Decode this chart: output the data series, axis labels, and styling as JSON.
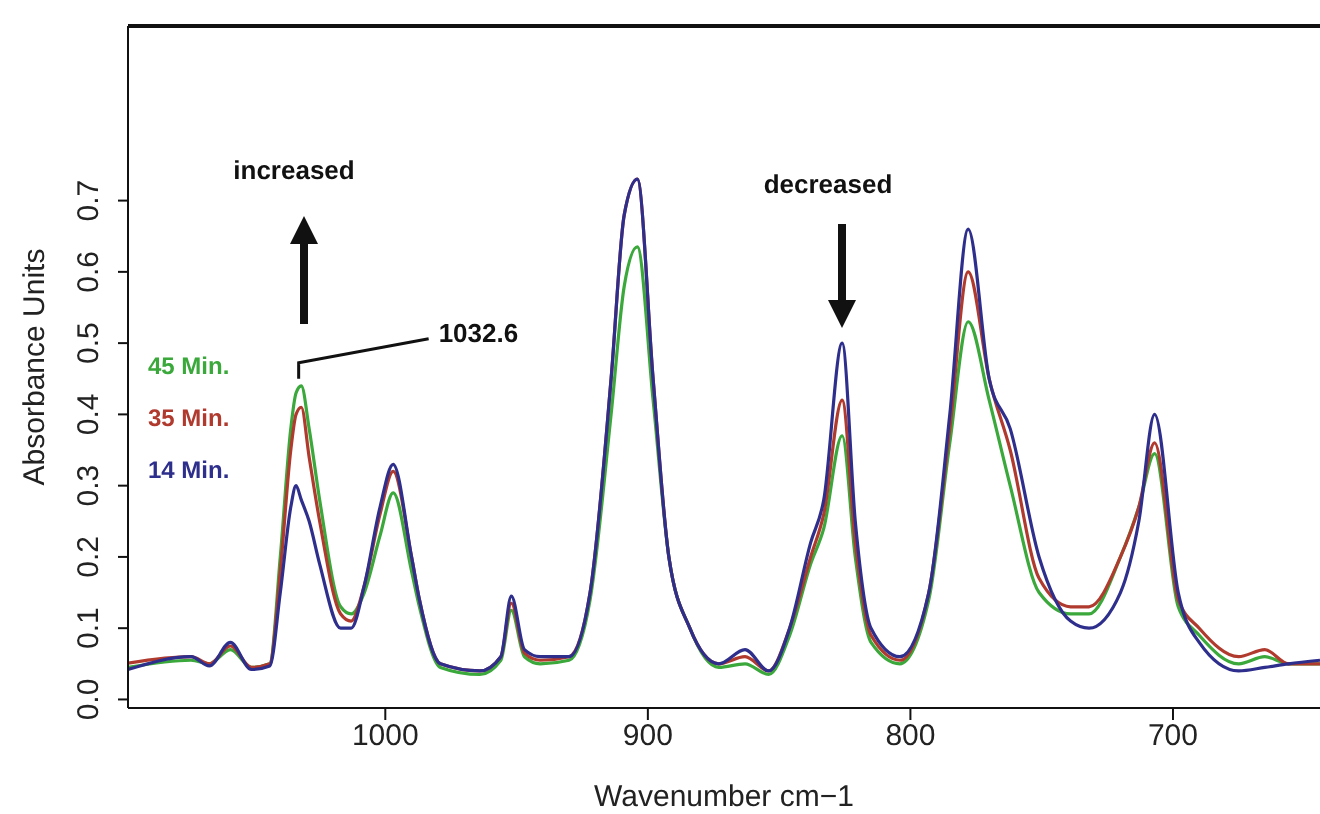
{
  "chart_data": {
    "type": "line",
    "xlabel": "Wavenumber cm−1",
    "ylabel": "Absorbance Units",
    "x": [
      1098,
      1074,
      1067,
      1059,
      1051,
      1044,
      1040,
      1036,
      1034,
      1032,
      1029,
      1025,
      1017,
      1013,
      1008,
      1002,
      997,
      990,
      987,
      979,
      964,
      956,
      952,
      947,
      941,
      930,
      922,
      914,
      909,
      904,
      898,
      892,
      884,
      873,
      863,
      854,
      846,
      838,
      833,
      826,
      821,
      815,
      804,
      793,
      785,
      778,
      770,
      762,
      751,
      739,
      732,
      720,
      713,
      707,
      698,
      690,
      675,
      665,
      656,
      644
    ],
    "series": [
      {
        "name": "45 Min.",
        "color": "#3aa83a",
        "values": [
          0.045,
          0.055,
          0.05,
          0.07,
          0.045,
          0.05,
          0.2,
          0.38,
          0.43,
          0.44,
          0.38,
          0.28,
          0.13,
          0.12,
          0.15,
          0.23,
          0.29,
          0.18,
          0.13,
          0.045,
          0.035,
          0.055,
          0.125,
          0.06,
          0.05,
          0.055,
          0.14,
          0.4,
          0.58,
          0.635,
          0.42,
          0.2,
          0.1,
          0.045,
          0.05,
          0.035,
          0.09,
          0.19,
          0.24,
          0.37,
          0.2,
          0.08,
          0.05,
          0.14,
          0.36,
          0.53,
          0.42,
          0.3,
          0.15,
          0.12,
          0.12,
          0.2,
          0.27,
          0.345,
          0.13,
          0.09,
          0.05,
          0.06,
          0.05,
          0.05
        ]
      },
      {
        "name": "35 Min.",
        "color": "#b03a2e",
        "values": [
          0.051,
          0.06,
          0.05,
          0.075,
          0.045,
          0.05,
          0.18,
          0.35,
          0.4,
          0.41,
          0.34,
          0.25,
          0.12,
          0.11,
          0.16,
          0.26,
          0.32,
          0.2,
          0.14,
          0.05,
          0.04,
          0.06,
          0.135,
          0.065,
          0.055,
          0.06,
          0.15,
          0.45,
          0.68,
          0.73,
          0.45,
          0.2,
          0.1,
          0.05,
          0.06,
          0.04,
          0.1,
          0.2,
          0.26,
          0.42,
          0.22,
          0.09,
          0.055,
          0.15,
          0.38,
          0.6,
          0.45,
          0.35,
          0.17,
          0.13,
          0.13,
          0.2,
          0.27,
          0.36,
          0.14,
          0.1,
          0.06,
          0.07,
          0.05,
          0.05
        ]
      },
      {
        "name": "14 Min.",
        "color": "#2e2e8c",
        "values": [
          0.042,
          0.06,
          0.047,
          0.08,
          0.042,
          0.047,
          0.15,
          0.27,
          0.3,
          0.28,
          0.25,
          0.19,
          0.1,
          0.1,
          0.16,
          0.27,
          0.33,
          0.2,
          0.14,
          0.05,
          0.04,
          0.06,
          0.145,
          0.07,
          0.06,
          0.06,
          0.15,
          0.45,
          0.68,
          0.73,
          0.45,
          0.2,
          0.1,
          0.05,
          0.07,
          0.04,
          0.1,
          0.22,
          0.28,
          0.5,
          0.25,
          0.1,
          0.06,
          0.15,
          0.4,
          0.66,
          0.45,
          0.38,
          0.2,
          0.11,
          0.1,
          0.15,
          0.25,
          0.4,
          0.15,
          0.08,
          0.04,
          0.045,
          0.05,
          0.055
        ]
      }
    ],
    "xlim": [
      1098,
      644
    ],
    "xticks": [
      1000,
      900,
      800,
      700
    ],
    "ylim": [
      -0.012,
      0.945
    ],
    "yticks": [
      {
        "value": 0,
        "label": "0.0"
      },
      0.1,
      0.2,
      0.3,
      0.4,
      0.5,
      0.6,
      0.7
    ],
    "annotations": [
      "increased",
      "decreased",
      {
        "text": "1032.6",
        "x": 1033,
        "y": 0.45
      }
    ],
    "grid": false,
    "legend": "left",
    "marker": "none",
    "line_style": "solid"
  }
}
